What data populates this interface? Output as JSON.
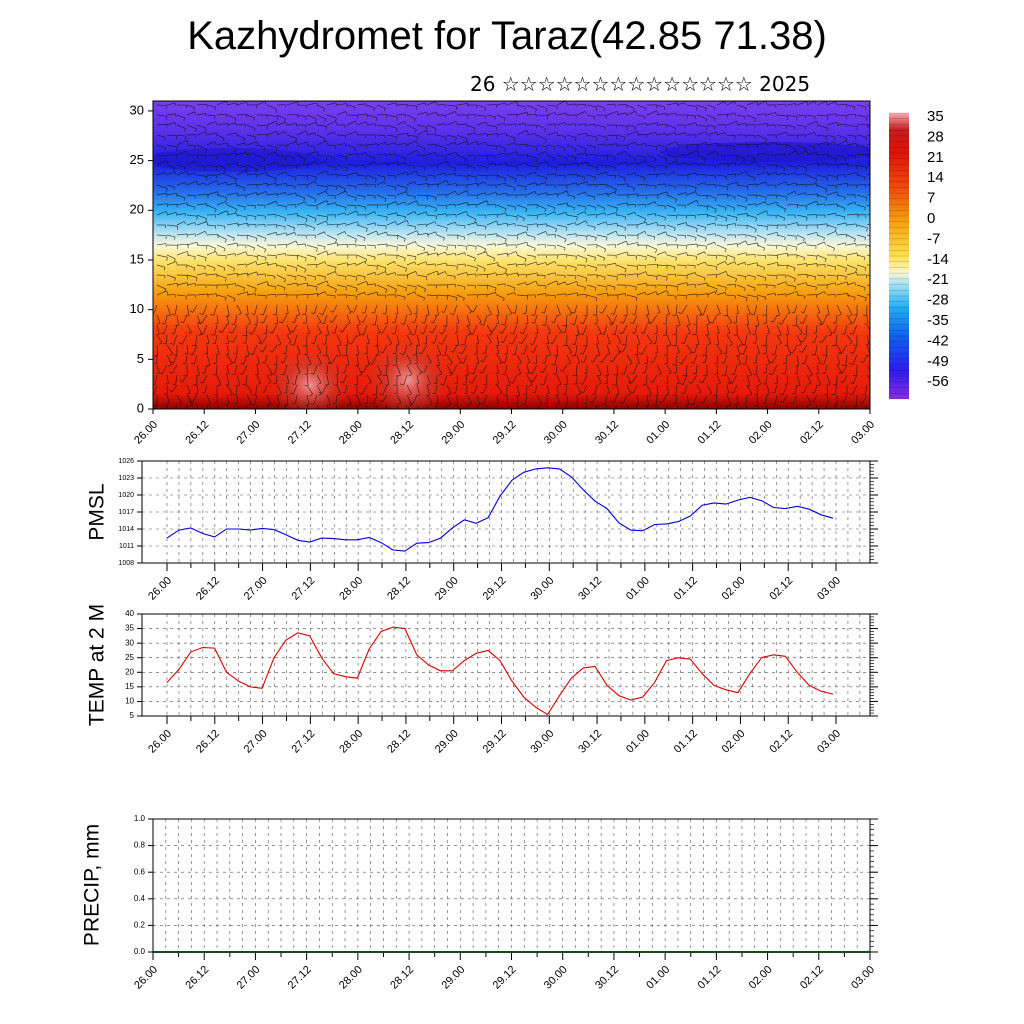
{
  "title": "Kazhydromet for Taraz(42.85 71.38)",
  "subtitle": "26 ☆☆☆☆☆☆☆☆☆☆☆☆☆☆ 2025",
  "colors": {
    "pmsl_line": "#0000dd",
    "temp_line": "#dd0000",
    "precip_baseline": "#1a4a1a",
    "grid": "#555555"
  },
  "chart_data": [
    {
      "id": "cross_section",
      "type": "heatmap",
      "xlabel": "",
      "ylabel": "",
      "x_tick_labels": [
        "26.00",
        "26.12",
        "27.00",
        "27.12",
        "28.00",
        "28.12",
        "29.00",
        "29.12",
        "30.00",
        "30.12",
        "01.00",
        "01.12",
        "02.00",
        "02.12",
        "03.00"
      ],
      "y_ticks": [
        0,
        5,
        10,
        15,
        20,
        25,
        30
      ],
      "ylim": [
        0,
        31
      ],
      "colorbar": {
        "labels": [
          "35",
          "28",
          "21",
          "14",
          "7",
          "0",
          "-7",
          "-14",
          "-21",
          "-28",
          "-35",
          "-42",
          "-49",
          "-56"
        ],
        "range": [
          -60,
          38
        ]
      },
      "overlay": "wind barbs"
    },
    {
      "id": "pmsl",
      "type": "line",
      "ylabel": "PMSL",
      "x_tick_labels": [
        "26.00",
        "26.12",
        "27.00",
        "27.12",
        "28.00",
        "28.12",
        "29.00",
        "29.12",
        "30.00",
        "30.12",
        "01.00",
        "01.12",
        "02.00",
        "02.12",
        "03.00"
      ],
      "y_ticks": [
        1008,
        1011,
        1014,
        1017,
        1020,
        1023,
        1026
      ],
      "ylim": [
        1008,
        1026
      ],
      "series": [
        {
          "values": [
            1012.4,
            1013.8,
            1014.2,
            1013.2,
            1012.6,
            1014.0,
            1014.0,
            1013.8,
            1014.1,
            1013.9,
            1013.0,
            1012.0,
            1011.7,
            1012.4,
            1012.3,
            1012.1,
            1012.1,
            1012.5,
            1011.6,
            1010.3,
            1010.1,
            1011.5,
            1011.6,
            1012.4,
            1014.2,
            1015.6,
            1015.0,
            1016.0,
            1019.8,
            1022.6,
            1024.0,
            1024.6,
            1024.8,
            1024.6,
            1023.2,
            1020.9,
            1018.9,
            1017.6,
            1015.1,
            1013.8,
            1013.7,
            1014.8,
            1014.9,
            1015.3,
            1016.3,
            1018.2,
            1018.6,
            1018.4,
            1019.1,
            1019.6,
            1019.0,
            1017.8,
            1017.6,
            1018.0,
            1017.5,
            1016.5,
            1015.9
          ]
        }
      ]
    },
    {
      "id": "temp",
      "type": "line",
      "ylabel": "TEMP at 2 M",
      "x_tick_labels": [
        "26.00",
        "26.12",
        "27.00",
        "27.12",
        "28.00",
        "28.12",
        "29.00",
        "29.12",
        "30.00",
        "30.12",
        "01.00",
        "01.12",
        "02.00",
        "02.12",
        "03.00"
      ],
      "y_ticks": [
        5,
        10,
        15,
        20,
        25,
        30,
        35,
        40
      ],
      "ylim": [
        5,
        40
      ],
      "series": [
        {
          "values": [
            16.5,
            21,
            27,
            28.5,
            28.3,
            20,
            17,
            15,
            14.5,
            25,
            31,
            33.5,
            32.5,
            25,
            19.5,
            18.5,
            18,
            28,
            34,
            35.5,
            35,
            26,
            22.5,
            20.5,
            20.5,
            24,
            26.5,
            27.5,
            24,
            17,
            11.5,
            8,
            5.5,
            12,
            18,
            21.5,
            22,
            15.5,
            12,
            10.5,
            11.5,
            16.5,
            24,
            25,
            24.5,
            19.5,
            15.5,
            14,
            13,
            19.5,
            25,
            26,
            25.5,
            20,
            15.5,
            13.5,
            12.5
          ]
        }
      ]
    },
    {
      "id": "precip",
      "type": "line",
      "ylabel": "PRECIP, mm",
      "x_tick_labels": [
        "26.00",
        "26.12",
        "27.00",
        "27.12",
        "28.00",
        "28.12",
        "29.00",
        "29.12",
        "30.00",
        "30.12",
        "01.00",
        "01.12",
        "02.00",
        "02.12",
        "03.00"
      ],
      "y_ticks": [
        "0.0",
        "0.2",
        "0.4",
        "0.6",
        "0.8",
        "1.0"
      ],
      "ylim": [
        0,
        1
      ],
      "series": [
        {
          "values": [
            0,
            0,
            0,
            0,
            0,
            0,
            0,
            0,
            0,
            0,
            0,
            0,
            0,
            0,
            0,
            0,
            0,
            0,
            0,
            0,
            0,
            0,
            0,
            0,
            0,
            0,
            0,
            0,
            0,
            0,
            0,
            0,
            0,
            0,
            0,
            0,
            0,
            0,
            0,
            0,
            0,
            0,
            0,
            0,
            0,
            0,
            0,
            0,
            0,
            0,
            0,
            0,
            0,
            0,
            0,
            0,
            0
          ]
        }
      ]
    }
  ]
}
